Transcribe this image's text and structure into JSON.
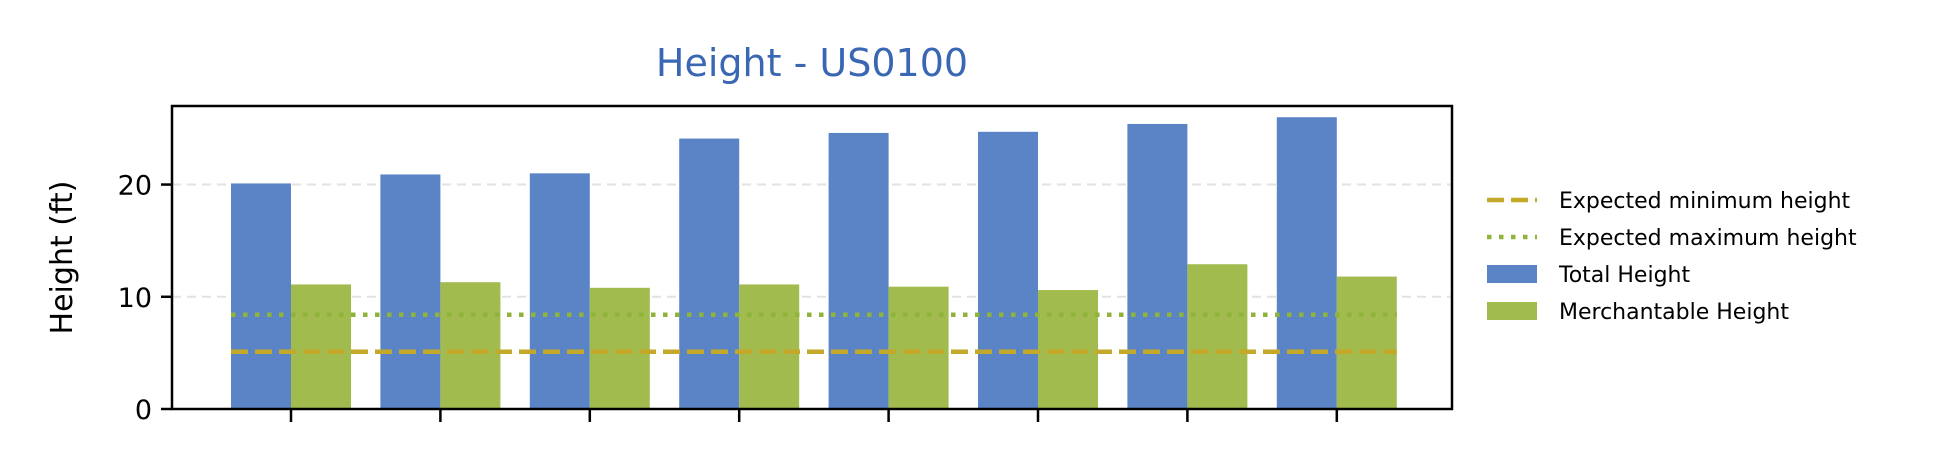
{
  "chart_data": {
    "type": "bar",
    "title": "Height - US0100",
    "title_color": "#3a67b4",
    "ylabel": "Height (ft)",
    "xlabel": "",
    "ylim": [
      0,
      27
    ],
    "yticks": [
      0,
      10,
      20
    ],
    "grid": "horizontal dashed",
    "legend_position": "right",
    "categories": [
      "",
      "",
      "",
      "",
      "",
      "",
      "",
      ""
    ],
    "series": [
      {
        "name": "Total Height",
        "color": "#5b84c6",
        "values": [
          20.1,
          20.9,
          21.0,
          24.1,
          24.6,
          24.7,
          25.4,
          26.0
        ]
      },
      {
        "name": "Merchantable Height",
        "color": "#a2bb4e",
        "values": [
          11.1,
          11.3,
          10.8,
          11.1,
          10.9,
          10.6,
          12.9,
          11.8
        ]
      }
    ],
    "reference_lines": [
      {
        "name": "Expected minimum height",
        "value": 5.1,
        "style": "dashed",
        "color": "#c4a82a"
      },
      {
        "name": "Expected maximum height",
        "value": 8.4,
        "style": "dotted",
        "color": "#8fb43a"
      }
    ],
    "legend": [
      "Expected minimum height",
      "Expected maximum height",
      "Total Height",
      "Merchantable Height"
    ]
  }
}
